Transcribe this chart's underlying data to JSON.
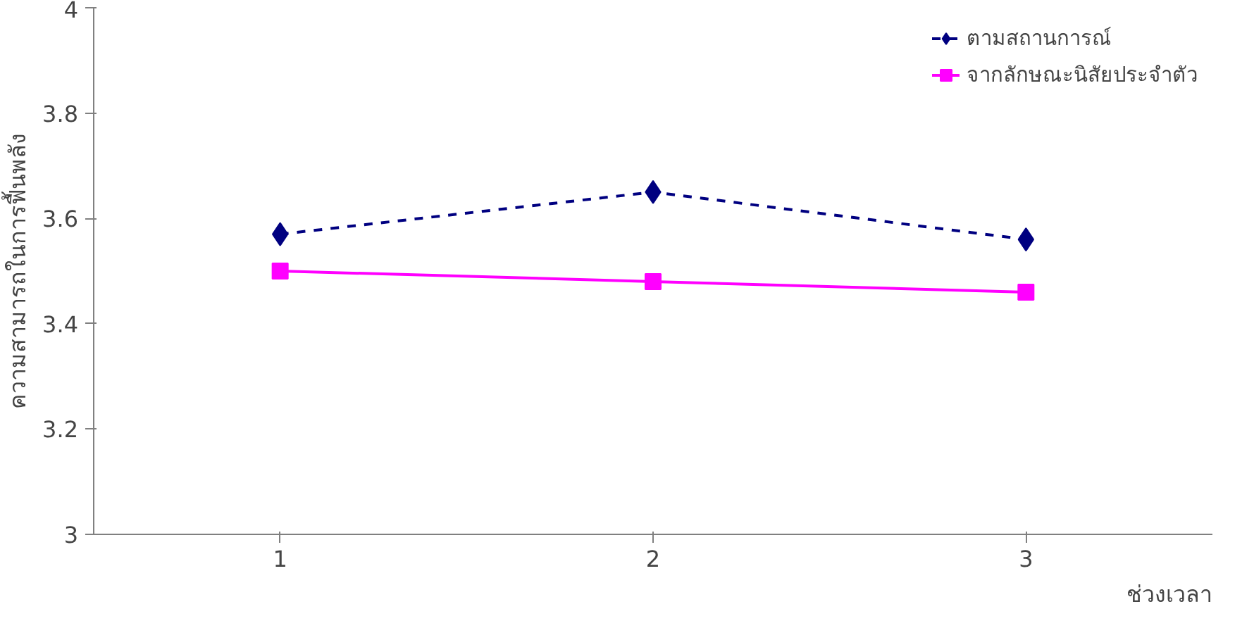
{
  "chart_data": {
    "type": "line",
    "xlabel": "ช่วงเวลา",
    "ylabel": "ความสามารถในการฟื้นพลัง",
    "categories": [
      "1",
      "2",
      "3"
    ],
    "series": [
      {
        "name": "ตามสถานการณ์",
        "color": "#000080",
        "values": [
          3.57,
          3.65,
          3.56
        ],
        "marker": "diamond",
        "line_style": "dashed"
      },
      {
        "name": "จากลักษณะนิสัยประจำตัว",
        "color": "#ff00ff",
        "values": [
          3.5,
          3.48,
          3.46
        ],
        "marker": "square",
        "line_style": "solid"
      }
    ],
    "ylim": [
      3,
      4
    ],
    "yticks": [
      3,
      3.2,
      3.4,
      3.6,
      3.8,
      4
    ],
    "grid": false,
    "legend": "top right"
  }
}
